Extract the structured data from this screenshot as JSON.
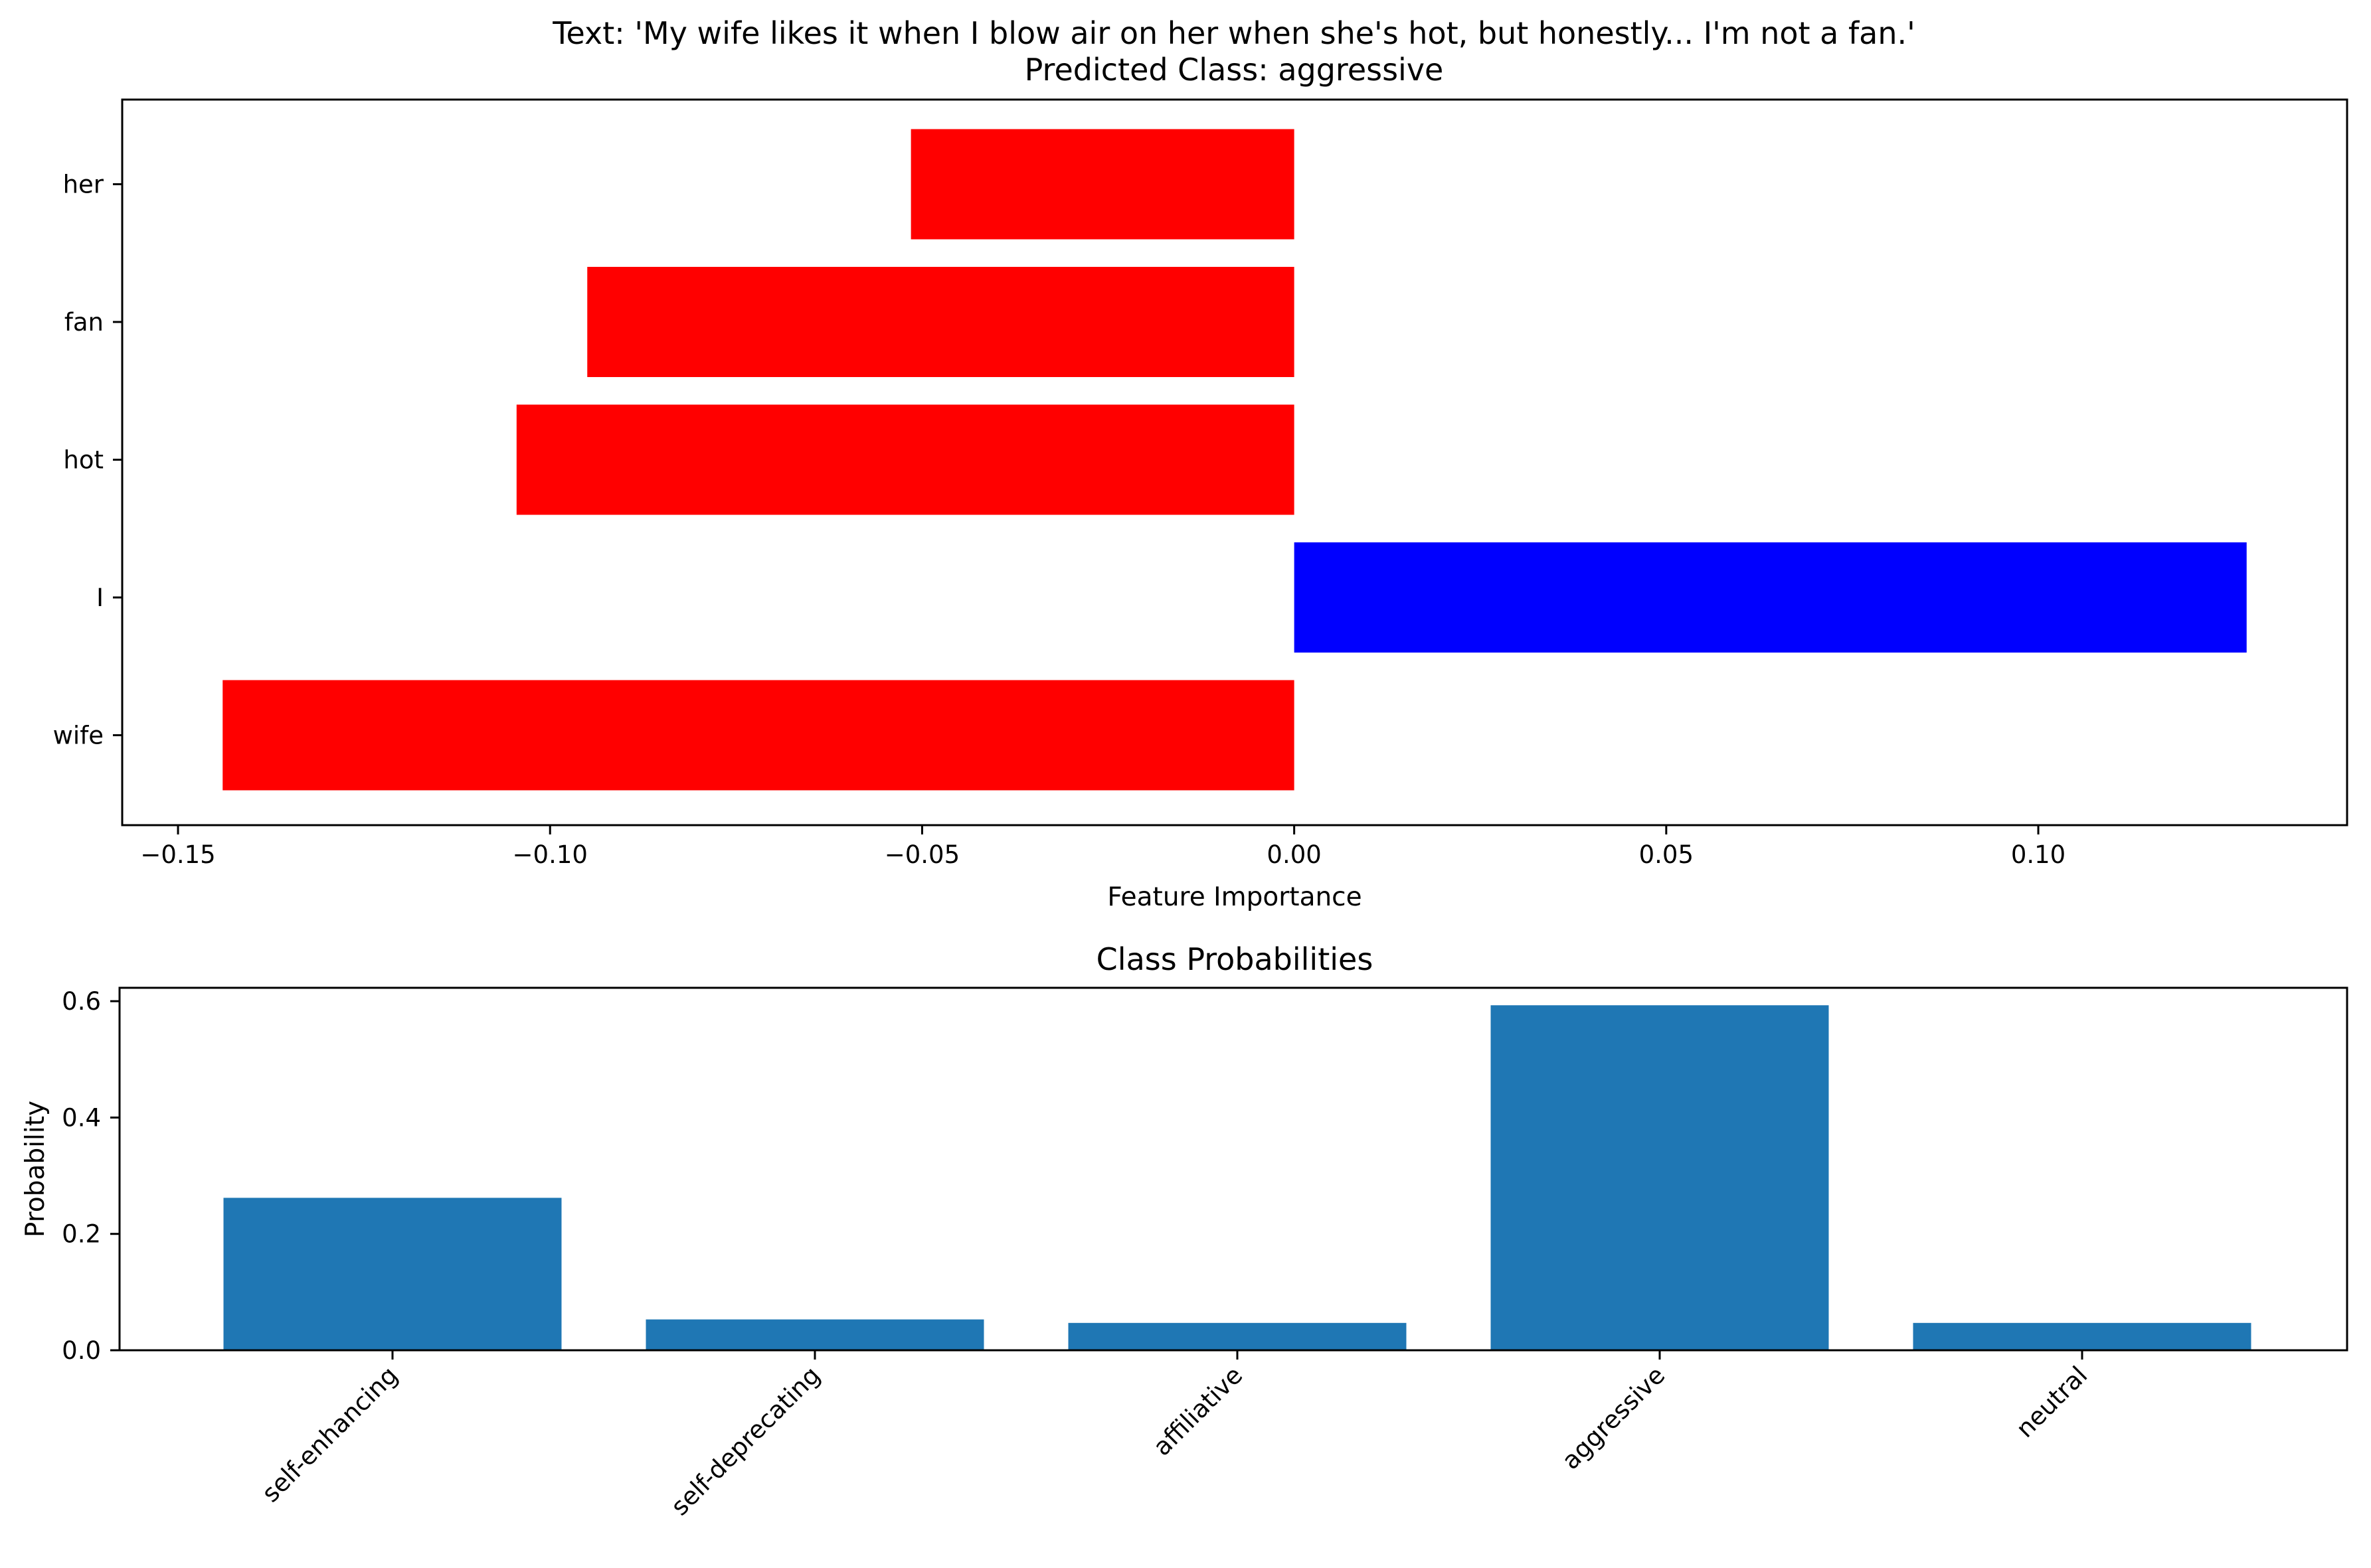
{
  "chart_data": [
    {
      "type": "bar",
      "orientation": "horizontal",
      "title": "Text: 'My wife likes it when I blow air on her when she's hot, but honestly... I'm not a fan.'\nPredicted Class: aggressive",
      "xlabel": "Feature Importance",
      "ylabel": "",
      "categories": [
        "wife",
        "I",
        "hot",
        "fan",
        "her"
      ],
      "values": [
        -0.144,
        0.128,
        -0.1045,
        -0.095,
        -0.0515
      ],
      "bar_colors": [
        "#ff0000",
        "#0000ff",
        "#ff0000",
        "#ff0000",
        "#ff0000"
      ],
      "xlim": [
        -0.1575,
        0.1415
      ],
      "xticks": [
        -0.15,
        -0.1,
        -0.05,
        0.0,
        0.05,
        0.1
      ],
      "xtick_labels": [
        "−0.15",
        "−0.10",
        "−0.05",
        "0.00",
        "0.05",
        "0.10"
      ],
      "grid": false,
      "legend": "none"
    },
    {
      "type": "bar",
      "orientation": "vertical",
      "title": "Class Probabilities",
      "xlabel": "",
      "ylabel": "Probability",
      "categories": [
        "self-enhancing",
        "self-deprecating",
        "affiliative",
        "aggressive",
        "neutral"
      ],
      "values": [
        0.262,
        0.053,
        0.047,
        0.593,
        0.047
      ],
      "bar_color": "#1f77b4",
      "ylim": [
        0,
        0.623
      ],
      "yticks": [
        0.0,
        0.2,
        0.4,
        0.6
      ],
      "ytick_labels": [
        "0.0",
        "0.2",
        "0.4",
        "0.6"
      ],
      "xtick_rotation": -45,
      "grid": false,
      "legend": "none"
    }
  ]
}
